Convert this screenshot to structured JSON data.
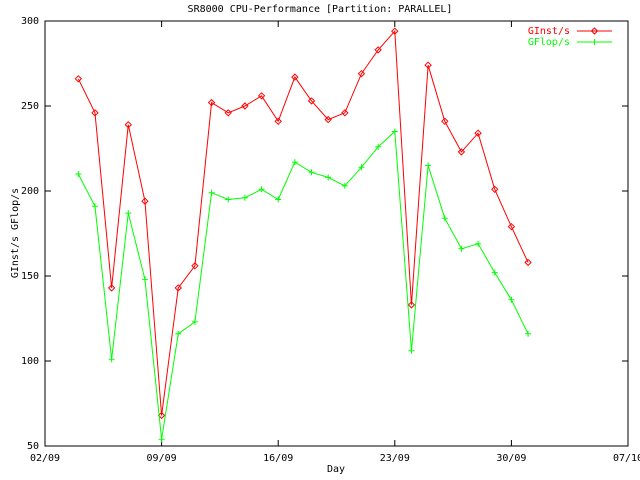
{
  "chart_data": {
    "type": "line",
    "title": "SR8000 CPU-Performance [Partition: PARALLEL]",
    "x_label": "Day",
    "y_label": "GInst/s  GFlop/s",
    "x": [
      "04/09",
      "05/09",
      "06/09",
      "07/09",
      "08/09",
      "09/09",
      "10/09",
      "11/09",
      "12/09",
      "13/09",
      "14/09",
      "15/09",
      "16/09",
      "17/09",
      "18/09",
      "19/09",
      "20/09",
      "21/09",
      "22/09",
      "23/09",
      "24/09",
      "25/09",
      "26/09",
      "27/09",
      "28/09",
      "29/09",
      "30/09",
      "01/10"
    ],
    "series": [
      {
        "name": "GInst/s",
        "color": "#ff0000",
        "marker": "diamond",
        "values": [
          266,
          246,
          143,
          239,
          194,
          68,
          143,
          156,
          252,
          246,
          250,
          256,
          241,
          267,
          253,
          242,
          246,
          269,
          283,
          294,
          133,
          274,
          241,
          223,
          234,
          201,
          179,
          158
        ]
      },
      {
        "name": "GFlop/s",
        "color": "#00ff00",
        "marker": "plus",
        "values": [
          210,
          191,
          101,
          187,
          148,
          54,
          116,
          123,
          199,
          195,
          196,
          201,
          195,
          217,
          211,
          208,
          203,
          214,
          226,
          235,
          106,
          215,
          184,
          166,
          169,
          152,
          136,
          116
        ]
      }
    ],
    "xlim": [
      "02/09",
      "07/10"
    ],
    "xticks": [
      "02/09",
      "09/09",
      "16/09",
      "23/09",
      "30/09",
      "07/10"
    ],
    "ylim": [
      50,
      300
    ],
    "yticks": [
      50,
      100,
      150,
      200,
      250,
      300
    ],
    "legend": "top-right"
  }
}
